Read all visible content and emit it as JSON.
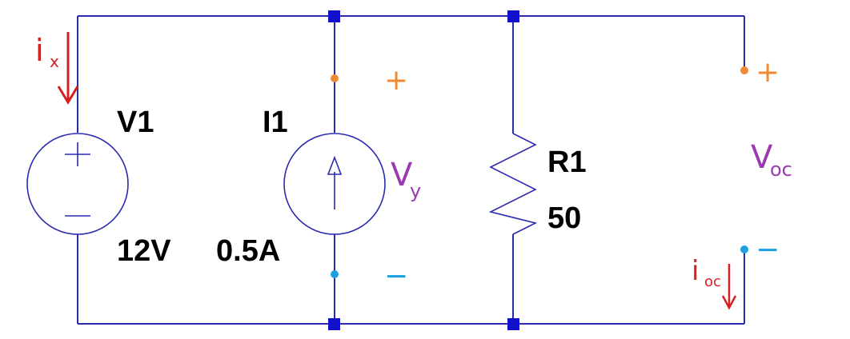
{
  "components": {
    "v1": {
      "name": "V1",
      "value": "12V"
    },
    "i1": {
      "name": "I1",
      "value": "0.5A"
    },
    "r1": {
      "name": "R1",
      "value": "50"
    }
  },
  "annotations": {
    "ix": "i",
    "ix_sub": "x",
    "vy": "V",
    "vy_sub": "y",
    "voc": "V",
    "voc_sub": "oc",
    "ioc": "i",
    "ioc_sub": "oc",
    "plus": "+",
    "minus": "−"
  },
  "colors": {
    "wire": "#2b2bb0",
    "node": "#1111cc",
    "current_annotation": "#d42020",
    "voltage_annotation": "#9b3ab0",
    "plus_terminal": "#f08a30",
    "minus_terminal": "#1aa0e0"
  }
}
